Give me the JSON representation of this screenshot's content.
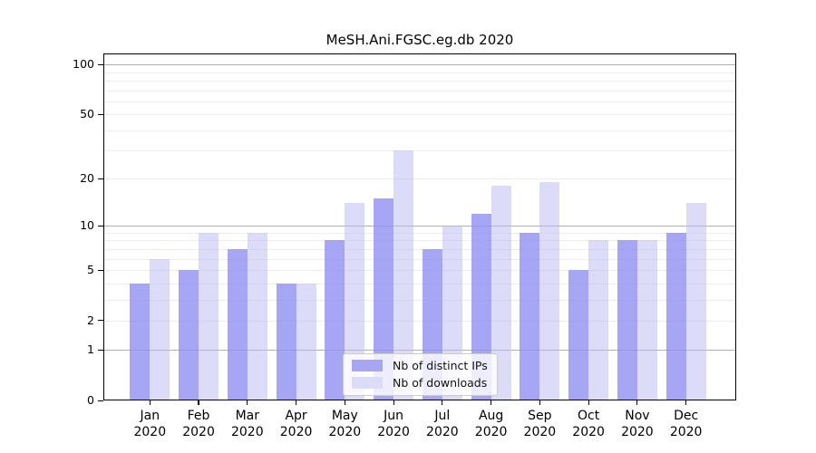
{
  "chart_data": {
    "type": "bar",
    "title": "MeSH.Ani.FGSC.eg.db 2020",
    "categories": [
      "Jan",
      "Feb",
      "Mar",
      "Apr",
      "May",
      "Jun",
      "Jul",
      "Aug",
      "Sep",
      "Oct",
      "Nov",
      "Dec"
    ],
    "year": "2020",
    "series": [
      {
        "name": "Nb of distinct IPs",
        "slug": "distinct-ips",
        "values": [
          4,
          5,
          7,
          4,
          8,
          15,
          7,
          12,
          9,
          5,
          8,
          9
        ],
        "color": "#a6a6f4",
        "fill": "rgba(141,141,241,0.78)"
      },
      {
        "name": "Nb of downloads",
        "slug": "downloads",
        "values": [
          6,
          9,
          9,
          4,
          14,
          30,
          10,
          18,
          19,
          8,
          8,
          14
        ],
        "color": "#dcdcf8",
        "fill": "rgba(185,185,241,0.5)"
      }
    ],
    "yscale": "log1p",
    "ylim": [
      0,
      117
    ],
    "y_ticks": [
      100,
      50,
      20,
      10,
      5,
      2,
      1,
      0
    ],
    "grid": {
      "major": [
        1,
        10,
        100
      ],
      "minor": [
        2,
        3,
        4,
        5,
        6,
        7,
        8,
        9,
        20,
        30,
        40,
        50,
        60,
        70,
        80,
        90
      ]
    },
    "grid_major_color": "#b0b0b0",
    "grid_minor_color": "#ececec",
    "axis_color": "#000000",
    "legend_position": "lower center"
  }
}
